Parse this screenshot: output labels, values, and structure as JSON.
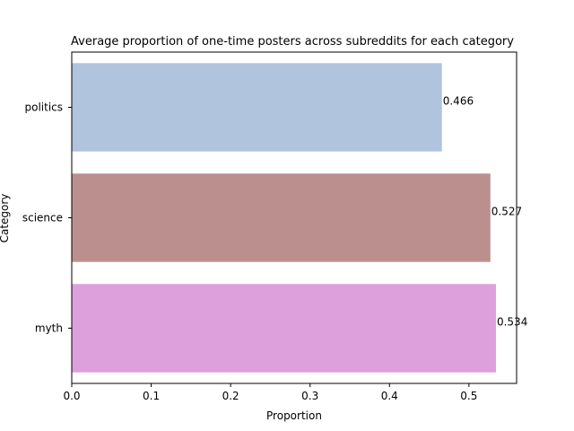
{
  "chart_data": {
    "type": "bar",
    "orientation": "horizontal",
    "title": "Average proportion of one-time posters across subreddits for each category",
    "xlabel": "Proportion",
    "ylabel": "Category",
    "categories": [
      "politics",
      "science",
      "myth"
    ],
    "values": [
      0.466,
      0.527,
      0.534
    ],
    "value_labels": [
      "0.466",
      "0.527",
      "0.534"
    ],
    "colors": [
      "#b0c4de",
      "#bc8f8f",
      "#dda0dd"
    ],
    "xlim": [
      0,
      0.56
    ],
    "xticks": [
      0.0,
      0.1,
      0.2,
      0.3,
      0.4,
      0.5
    ],
    "xtick_labels": [
      "0.0",
      "0.1",
      "0.2",
      "0.3",
      "0.4",
      "0.5"
    ],
    "grid": false,
    "legend": "none"
  }
}
